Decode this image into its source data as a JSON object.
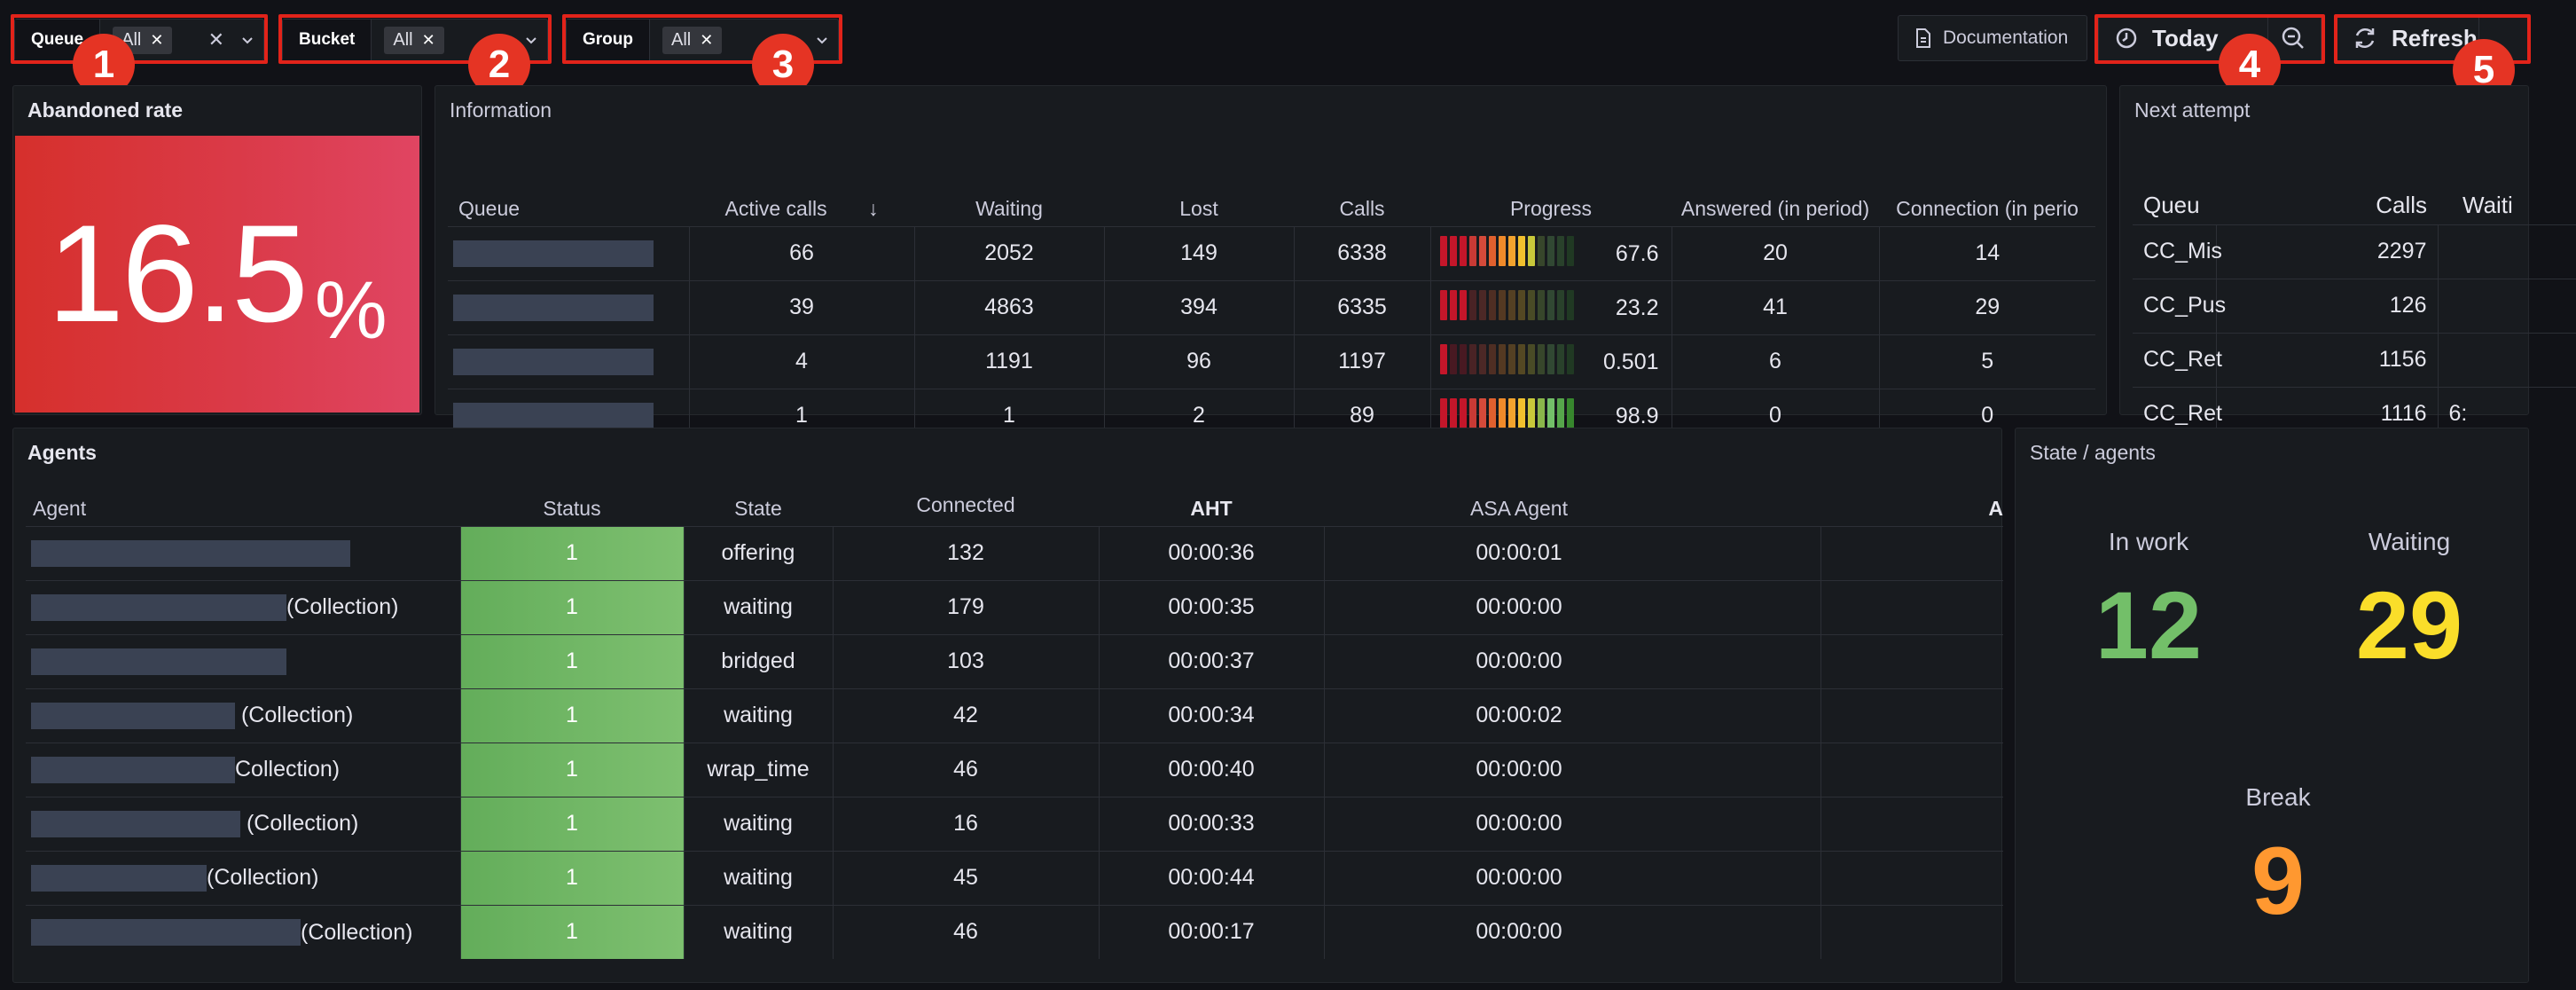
{
  "variables": {
    "queue": {
      "label": "Queue",
      "value": "All"
    },
    "bucket": {
      "label": "Bucket",
      "value": "All"
    },
    "group": {
      "label": "Group",
      "value": "All"
    }
  },
  "toolbar": {
    "documentation": "Documentation",
    "time_range": "Today",
    "refresh": "Refresh"
  },
  "badges": [
    "1",
    "2",
    "3",
    "4",
    "5"
  ],
  "abandoned": {
    "title": "Abandoned rate",
    "value": "16.5",
    "unit": "%"
  },
  "information": {
    "title": "Information",
    "columns": [
      "Queue",
      "Active calls",
      "Waiting",
      "Lost",
      "Calls",
      "Progress",
      "Answered (in period)",
      "Connection (in perio"
    ],
    "rows": [
      {
        "active": "66",
        "waiting": "2052",
        "lost": "149",
        "calls": "6338",
        "progress": "67.6",
        "progress_level": 0.68,
        "answered": "20",
        "connection": "14"
      },
      {
        "active": "39",
        "waiting": "4863",
        "lost": "394",
        "calls": "6335",
        "progress": "23.2",
        "progress_level": 0.23,
        "answered": "41",
        "connection": "29"
      },
      {
        "active": "4",
        "waiting": "1191",
        "lost": "96",
        "calls": "1197",
        "progress": "0.501",
        "progress_level": 0.01,
        "answered": "6",
        "connection": "5"
      },
      {
        "active": "1",
        "waiting": "1",
        "lost": "2",
        "calls": "89",
        "progress": "98.9",
        "progress_level": 0.99,
        "answered": "0",
        "connection": "0"
      }
    ]
  },
  "next_attempt": {
    "title": "Next attempt",
    "columns": [
      "Queu",
      "Calls",
      "Waiti"
    ],
    "rows": [
      {
        "queue": "CC_Mis",
        "calls": "2297",
        "waiting": ""
      },
      {
        "queue": "CC_Pus",
        "calls": "126",
        "waiting": ""
      },
      {
        "queue": "CC_Ret",
        "calls": "1156",
        "waiting": ""
      },
      {
        "queue": "CC_Ret",
        "calls": "1116",
        "waiting": "6:"
      }
    ]
  },
  "agents": {
    "title": "Agents",
    "columns": [
      "Agent",
      "Status",
      "State",
      "Connected",
      "AHT",
      "ASA Agent",
      "A"
    ],
    "rows": [
      {
        "suffix": "",
        "status": "1",
        "state": "offering",
        "connected": "132",
        "aht": "00:00:36",
        "asa": "00:00:01"
      },
      {
        "suffix": "(Collection)",
        "status": "1",
        "state": "waiting",
        "connected": "179",
        "aht": "00:00:35",
        "asa": "00:00:00"
      },
      {
        "suffix": "",
        "status": "1",
        "state": "bridged",
        "connected": "103",
        "aht": "00:00:37",
        "asa": "00:00:00"
      },
      {
        "suffix": " (Collection)",
        "status": "1",
        "state": "waiting",
        "connected": "42",
        "aht": "00:00:34",
        "asa": "00:00:02"
      },
      {
        "suffix": "Collection)",
        "status": "1",
        "state": "wrap_time",
        "connected": "46",
        "aht": "00:00:40",
        "asa": "00:00:00"
      },
      {
        "suffix": " (Collection)",
        "status": "1",
        "state": "waiting",
        "connected": "16",
        "aht": "00:00:33",
        "asa": "00:00:00"
      },
      {
        "suffix": "(Collection)",
        "status": "1",
        "state": "waiting",
        "connected": "45",
        "aht": "00:00:44",
        "asa": "00:00:00"
      },
      {
        "suffix": "(Collection)",
        "status": "1",
        "state": "waiting",
        "connected": "46",
        "aht": "00:00:17",
        "asa": "00:00:00"
      }
    ]
  },
  "state_agents": {
    "title": "State / agents",
    "in_work": {
      "label": "In work",
      "value": "12",
      "color": "#73bf69"
    },
    "waiting": {
      "label": "Waiting",
      "value": "29",
      "color": "#fade2a"
    },
    "break": {
      "label": "Break",
      "value": "9",
      "color": "#ff9830"
    }
  },
  "colors": {
    "highlight": "#e2231a",
    "badge": "#e53424",
    "abandon_bg": "#da3a48",
    "status_green": "#73bf69"
  }
}
